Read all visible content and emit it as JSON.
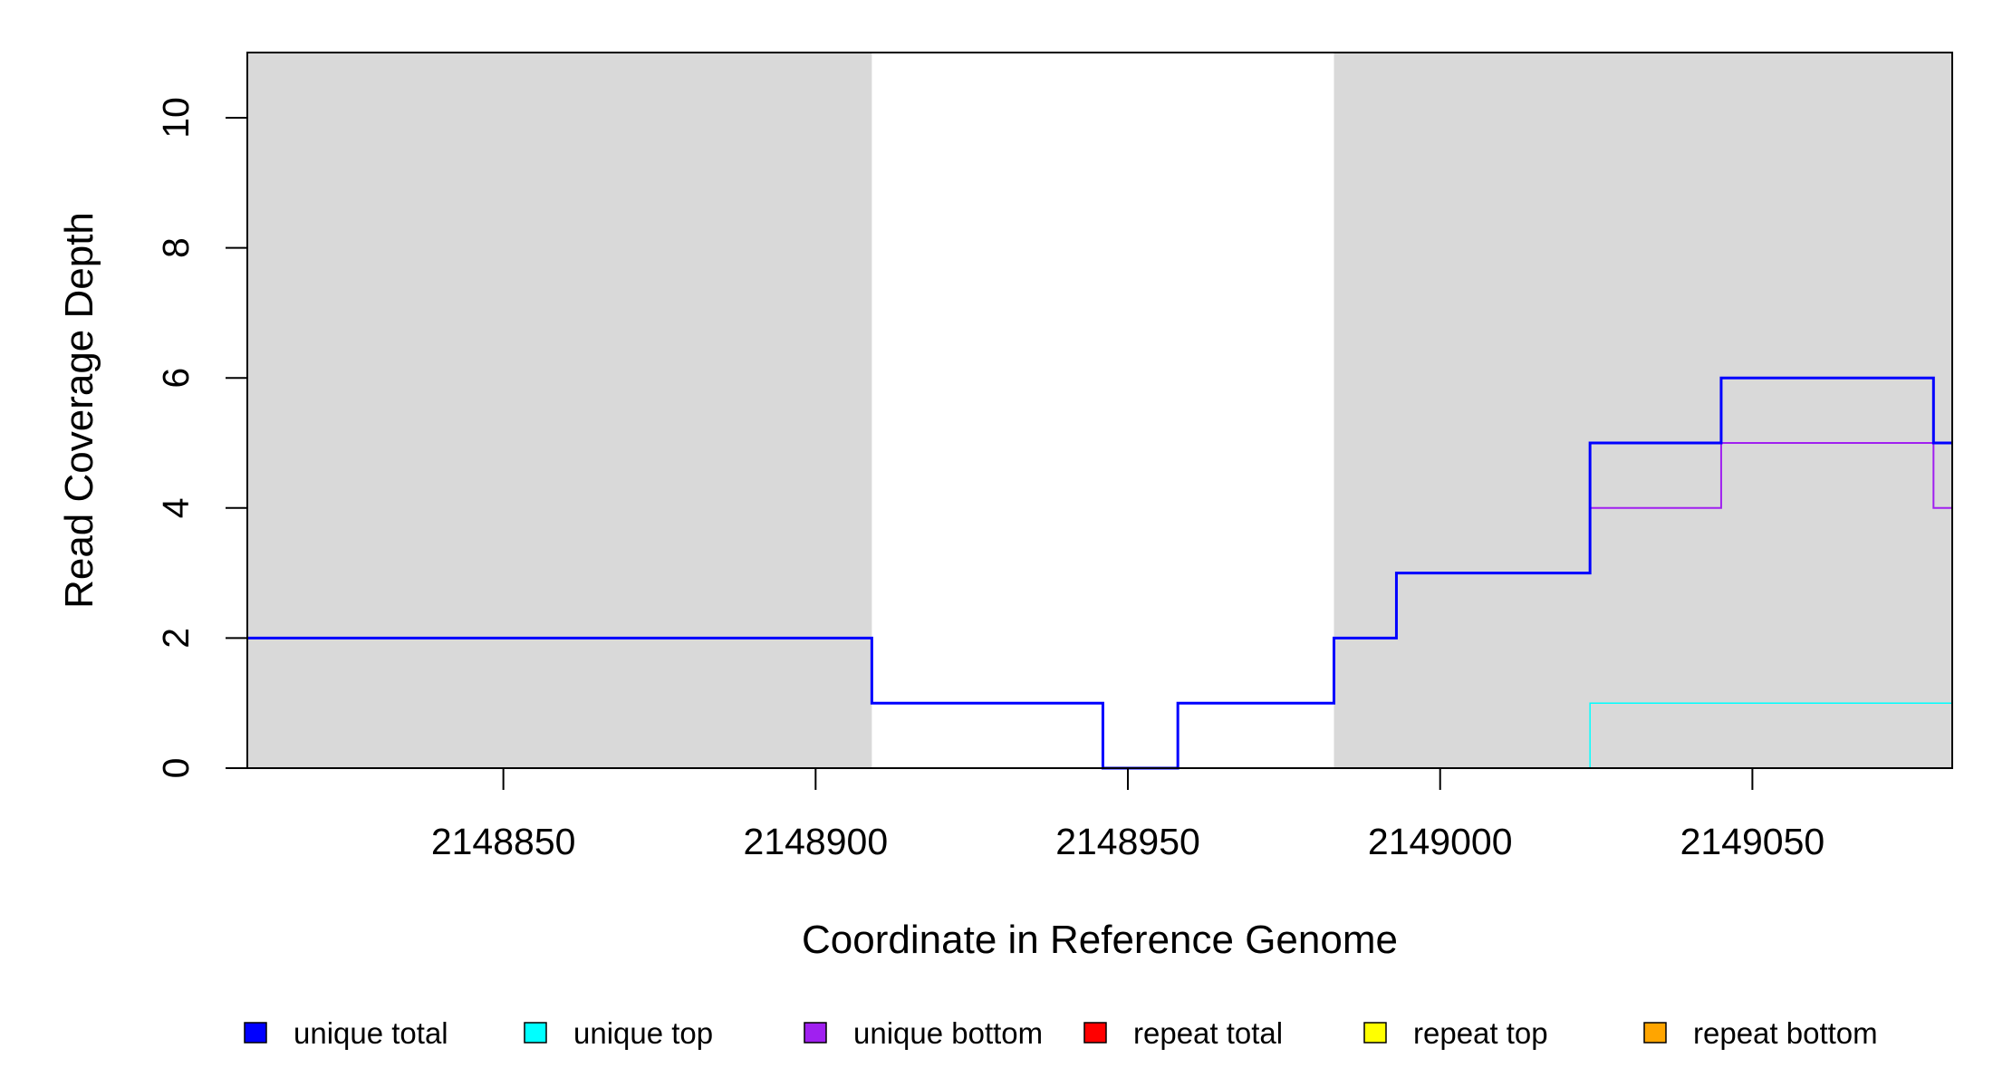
{
  "chart_data": {
    "type": "line",
    "step": true,
    "title": "",
    "xlabel": "Coordinate in Reference Genome",
    "ylabel": "Read Coverage Depth",
    "xlim": [
      2148809,
      2149082
    ],
    "ylim": [
      0,
      11
    ],
    "x_ticks": [
      2148850,
      2148900,
      2148950,
      2149000,
      2149050
    ],
    "y_ticks": [
      0,
      2,
      4,
      6,
      8,
      10
    ],
    "grid": false,
    "legend_position": "bottom",
    "shaded_regions": [
      {
        "from": 2148809,
        "to": 2148909,
        "color": "#d9d9d9"
      },
      {
        "from": 2148983,
        "to": 2149082,
        "color": "#d9d9d9"
      }
    ],
    "series": [
      {
        "name": "unique total",
        "color": "#0000ff",
        "points": [
          [
            2148809,
            2
          ],
          [
            2148909,
            1
          ],
          [
            2148946,
            0
          ],
          [
            2148958,
            1
          ],
          [
            2148983,
            2
          ],
          [
            2148993,
            3
          ],
          [
            2149024,
            5
          ],
          [
            2149045,
            6
          ],
          [
            2149079,
            5
          ],
          [
            2149082,
            5
          ]
        ]
      },
      {
        "name": "unique top",
        "color": "#00ffff",
        "points": [
          [
            2148809,
            0
          ],
          [
            2149024,
            1
          ],
          [
            2149082,
            1
          ]
        ]
      },
      {
        "name": "unique bottom",
        "color": "#a020f0",
        "points": [
          [
            2148809,
            2
          ],
          [
            2148909,
            1
          ],
          [
            2148946,
            0
          ],
          [
            2148958,
            1
          ],
          [
            2148983,
            2
          ],
          [
            2148993,
            3
          ],
          [
            2149024,
            4
          ],
          [
            2149045,
            5
          ],
          [
            2149079,
            4
          ],
          [
            2149082,
            4
          ]
        ]
      },
      {
        "name": "repeat total",
        "color": "#ff0000",
        "points": [
          [
            2148809,
            0
          ],
          [
            2149082,
            0
          ]
        ]
      },
      {
        "name": "repeat top",
        "color": "#ffff00",
        "points": [
          [
            2148809,
            0
          ],
          [
            2149082,
            0
          ]
        ]
      },
      {
        "name": "repeat bottom",
        "color": "#ffa500",
        "points": [
          [
            2148809,
            0
          ],
          [
            2149082,
            0
          ]
        ]
      }
    ]
  }
}
